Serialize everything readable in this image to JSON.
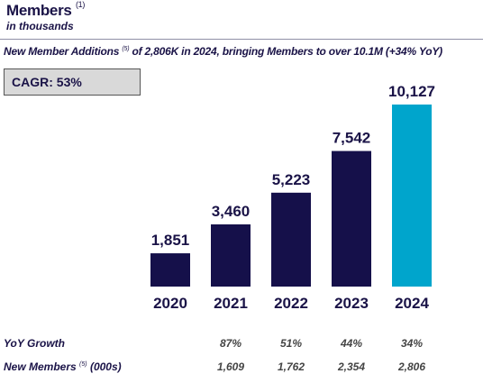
{
  "header": {
    "title": "Members",
    "title_note": "(1)",
    "subtitle": "in thousands",
    "headline_part1": "New Member Additions",
    "headline_note": "(5)",
    "headline_part2": " of 2,806K in 2024, bringing Members to over 10.1M  (+34% YoY)"
  },
  "cagr": {
    "label": "CAGR:",
    "value": "53%"
  },
  "chart_data": {
    "type": "bar",
    "categories": [
      "2020",
      "2021",
      "2022",
      "2023",
      "2024"
    ],
    "values": [
      1851,
      3460,
      5223,
      7542,
      10127
    ],
    "value_labels": [
      "1,851",
      "3,460",
      "5,223",
      "7,542",
      "10,127"
    ],
    "colors": [
      "#15104a",
      "#15104a",
      "#15104a",
      "#15104a",
      "#00a5cc"
    ],
    "ylim": [
      0,
      10127
    ],
    "title": "Members",
    "xlabel": "",
    "ylabel": ""
  },
  "table": {
    "yoy_label": "YoY Growth",
    "yoy_values": [
      "",
      "87%",
      "51%",
      "44%",
      "34%"
    ],
    "new_label": "New Members",
    "new_note": "(5)",
    "new_suffix": " (000s)",
    "new_values": [
      "",
      "1,609",
      "1,762",
      "2,354",
      "2,806"
    ]
  }
}
